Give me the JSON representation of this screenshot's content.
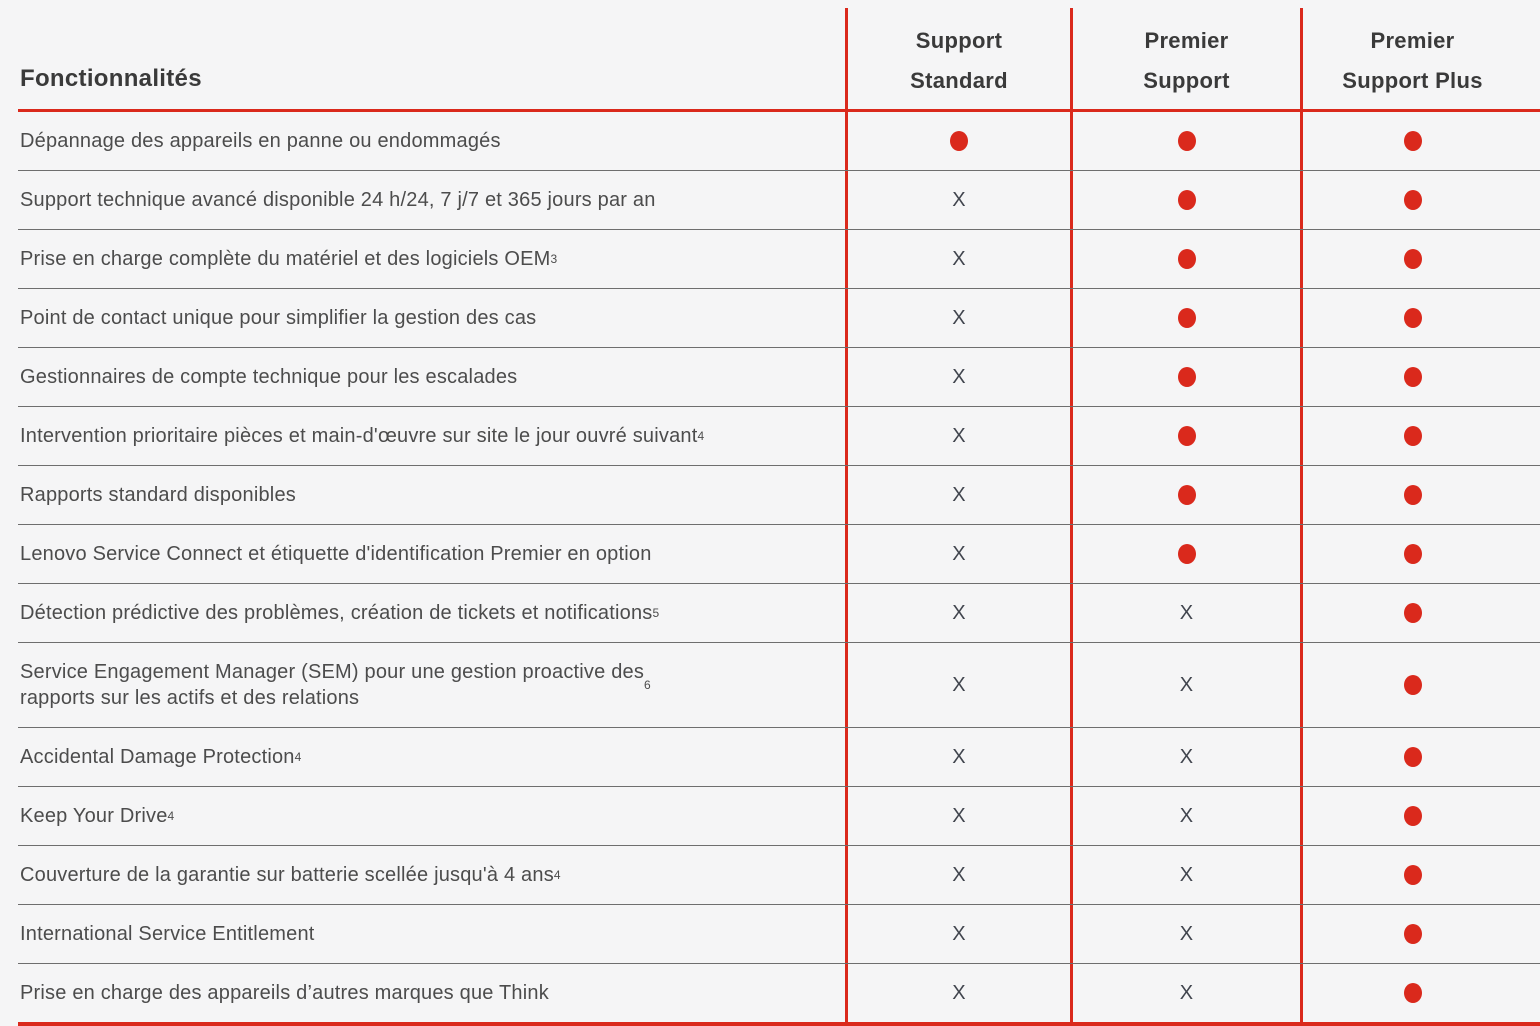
{
  "table": {
    "feature_header": "Fonctionnalités",
    "columns": [
      {
        "line1": "Support",
        "line2": "Standard"
      },
      {
        "line1": "Premier",
        "line2": "Support"
      },
      {
        "line1": "Premier",
        "line2": "Support Plus"
      }
    ],
    "x_symbol": "X",
    "dot_color": "#DA291C",
    "rows": [
      {
        "label": "Dépannage des appareils en panne ou endommagés",
        "sup": "",
        "values": [
          "dot",
          "dot",
          "dot"
        ]
      },
      {
        "label": "Support technique avancé disponible 24 h/24, 7 j/7 et 365 jours par an",
        "sup": "",
        "values": [
          "x",
          "dot",
          "dot"
        ]
      },
      {
        "label": "Prise en charge complète du matériel et des logiciels OEM",
        "sup": "3",
        "values": [
          "x",
          "dot",
          "dot"
        ]
      },
      {
        "label": "Point de contact unique pour simplifier la gestion des cas",
        "sup": "",
        "values": [
          "x",
          "dot",
          "dot"
        ]
      },
      {
        "label": "Gestionnaires de compte technique pour les escalades",
        "sup": "",
        "values": [
          "x",
          "dot",
          "dot"
        ]
      },
      {
        "label": "Intervention prioritaire pièces et main-d'œuvre sur site le jour ouvré suivant",
        "sup": "4",
        "values": [
          "x",
          "dot",
          "dot"
        ]
      },
      {
        "label": "Rapports standard disponibles",
        "sup": "",
        "values": [
          "x",
          "dot",
          "dot"
        ]
      },
      {
        "label": "Lenovo Service Connect et étiquette d'identification Premier en option",
        "sup": "",
        "values": [
          "x",
          "dot",
          "dot"
        ]
      },
      {
        "label": "Détection prédictive des problèmes, création de tickets et notifications",
        "sup": "5",
        "values": [
          "x",
          "x",
          "dot"
        ]
      },
      {
        "label": "Service Engagement Manager (SEM) pour une gestion proactive des\nrapports sur les actifs et des relations",
        "sup": "6",
        "values": [
          "x",
          "x",
          "dot"
        ]
      },
      {
        "label": "Accidental Damage Protection",
        "sup": "4",
        "values": [
          "x",
          "x",
          "dot"
        ]
      },
      {
        "label": "Keep Your Drive",
        "sup": "4",
        "values": [
          "x",
          "x",
          "dot"
        ]
      },
      {
        "label": "Couverture de la garantie sur batterie scellée jusqu'à 4 ans",
        "sup": "4",
        "values": [
          "x",
          "x",
          "dot"
        ]
      },
      {
        "label": "International Service Entitlement",
        "sup": "",
        "values": [
          "x",
          "x",
          "dot"
        ]
      },
      {
        "label": "Prise en charge des appareils d’autres marques que Think",
        "sup": "",
        "values": [
          "x",
          "x",
          "dot"
        ]
      }
    ]
  }
}
